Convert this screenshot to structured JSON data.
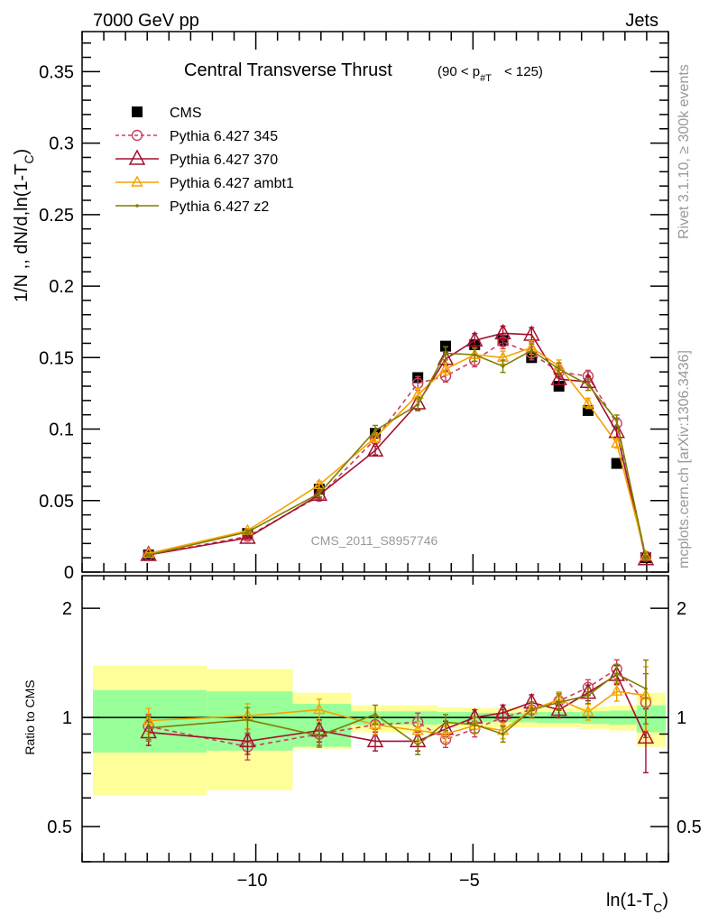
{
  "header": {
    "left": "7000 GeV pp",
    "right": "Jets"
  },
  "side_text": {
    "rivet": "Rivet 3.1.10, ≥ 300k events",
    "mcplots": "mcplots.cern.ch [arXiv:1306.3436]"
  },
  "watermark": "CMS_2011_S8957746",
  "colors": {
    "CMS": "#000000",
    "p345": "#c8405e",
    "p370": "#a3102e",
    "ambt1": "#f5a300",
    "z2": "#7f7f00",
    "band_stat": "#99ff99",
    "band_total": "#ffff99"
  },
  "chart_data": [
    {
      "type": "line",
      "title": "Central Transverse Thrust",
      "subtitle": {
        "open": "(90 < p",
        "sub": "#T",
        "close": "< 125)"
      },
      "xlabel": {
        "main": "ln(1-T",
        "sub": "C",
        "end": ")"
      },
      "ylabel": {
        "main": "1/N ,, dN/d,ln(1-T",
        "sub": "C",
        "end": ")"
      },
      "xlim": [
        -14.0,
        -0.5
      ],
      "ylim": [
        0,
        0.378
      ],
      "yticks": [
        0,
        0.05,
        0.1,
        0.15,
        0.2,
        0.25,
        0.3,
        0.35
      ],
      "ytick_labels": [
        "0",
        "0.05",
        "0.1",
        "0.15",
        "0.2",
        "0.25",
        "0.3",
        "0.35"
      ],
      "legend_position": "top-left",
      "x": [
        -12.47,
        -10.19,
        -8.54,
        -7.25,
        -6.27,
        -5.63,
        -4.96,
        -4.31,
        -3.65,
        -3.02,
        -2.35,
        -1.69,
        -1.02
      ],
      "series": [
        {
          "key": "CMS",
          "name": "CMS",
          "marker": "square",
          "values": [
            0.012,
            0.027,
            0.058,
            0.097,
            0.136,
            0.158,
            0.159,
            0.162,
            0.15,
            0.13,
            0.113,
            0.076,
            0.01
          ]
        },
        {
          "key": "p345",
          "name": "Pythia 6.427 345",
          "marker": "circle",
          "dashed": true,
          "values": [
            0.012,
            0.025,
            0.053,
            0.093,
            0.132,
            0.137,
            0.148,
            0.161,
            0.153,
            0.14,
            0.137,
            0.104,
            0.011
          ]
        },
        {
          "key": "p370",
          "name": "Pythia 6.427 370",
          "marker": "triangle-large",
          "values": [
            0.012,
            0.024,
            0.054,
            0.085,
            0.118,
            0.149,
            0.162,
            0.167,
            0.166,
            0.135,
            0.133,
            0.098,
            0.009
          ]
        },
        {
          "key": "ambt1",
          "name": "Pythia 6.427 ambt1",
          "marker": "triangle-small",
          "values": [
            0.013,
            0.029,
            0.061,
            0.094,
            0.124,
            0.142,
            0.152,
            0.15,
            0.157,
            0.144,
            0.118,
            0.09,
            0.011
          ]
        },
        {
          "key": "z2",
          "name": "Pythia 6.427 z2",
          "marker": "dot",
          "values": [
            0.012,
            0.028,
            0.055,
            0.099,
            0.117,
            0.153,
            0.152,
            0.144,
            0.155,
            0.142,
            0.131,
            0.106,
            0.01
          ]
        }
      ],
      "rel_err": [
        0.08,
        0.08,
        0.07,
        0.06,
        0.06,
        0.05,
        0.05,
        0.05,
        0.05,
        0.05,
        0.05,
        0.06,
        0.2
      ]
    },
    {
      "type": "line",
      "ylabel": "Ratio to CMS",
      "yscale": "log",
      "ylim": [
        0.4,
        2.46
      ],
      "yticks": [
        0.5,
        1,
        2
      ],
      "ytick_labels": [
        "0.5",
        "1",
        "2"
      ],
      "xticks": [
        -10,
        -5
      ],
      "xtick_labels": [
        "−10",
        "−5"
      ],
      "bands": [
        {
          "x0": -13.75,
          "x1": -11.13,
          "total": [
            0.61,
            1.39
          ],
          "stat": [
            0.8,
            1.19
          ]
        },
        {
          "x0": -11.13,
          "x1": -9.15,
          "total": [
            0.63,
            1.36
          ],
          "stat": [
            0.81,
            1.18
          ]
        },
        {
          "x0": -9.15,
          "x1": -7.81,
          "total": [
            0.82,
            1.17
          ],
          "stat": [
            0.83,
            1.09
          ]
        },
        {
          "x0": -7.81,
          "x1": -5.81,
          "total": [
            0.91,
            1.08
          ],
          "stat": [
            0.955,
            1.04
          ]
        },
        {
          "x0": -5.81,
          "x1": -4.92,
          "total": [
            0.935,
            1.065
          ],
          "stat": [
            0.96,
            1.035
          ]
        },
        {
          "x0": -4.92,
          "x1": -3.54,
          "total": [
            0.94,
            1.06
          ],
          "stat": [
            0.97,
            1.03
          ]
        },
        {
          "x0": -3.54,
          "x1": -2.52,
          "total": [
            0.94,
            1.06
          ],
          "stat": [
            0.965,
            1.035
          ]
        },
        {
          "x0": -2.52,
          "x1": -1.85,
          "total": [
            0.93,
            1.07
          ],
          "stat": [
            0.96,
            1.04
          ]
        },
        {
          "x0": -1.85,
          "x1": -1.23,
          "total": [
            0.92,
            1.08
          ],
          "stat": [
            0.955,
            1.045
          ]
        },
        {
          "x0": -1.23,
          "x1": -0.56,
          "total": [
            0.83,
            1.17
          ],
          "stat": [
            0.91,
            1.08
          ]
        }
      ],
      "series": [
        {
          "key": "p345",
          "values": [
            0.945,
            0.83,
            0.9,
            0.955,
            0.97,
            0.87,
            0.93,
            1.0,
            1.05,
            1.11,
            1.21,
            1.36,
            1.1
          ]
        },
        {
          "key": "p370",
          "values": [
            0.91,
            0.86,
            0.92,
            0.86,
            0.86,
            0.93,
            1.0,
            1.03,
            1.1,
            1.05,
            1.17,
            1.31,
            0.88
          ]
        },
        {
          "key": "ambt1",
          "values": [
            0.98,
            1.01,
            1.05,
            0.955,
            0.92,
            0.9,
            0.95,
            0.92,
            1.05,
            1.12,
            1.035,
            1.18,
            1.15
          ]
        },
        {
          "key": "z2",
          "values": [
            0.935,
            0.985,
            0.89,
            1.02,
            0.84,
            0.97,
            0.955,
            0.9,
            1.05,
            1.1,
            1.15,
            1.32,
            1.2
          ]
        }
      ]
    }
  ]
}
